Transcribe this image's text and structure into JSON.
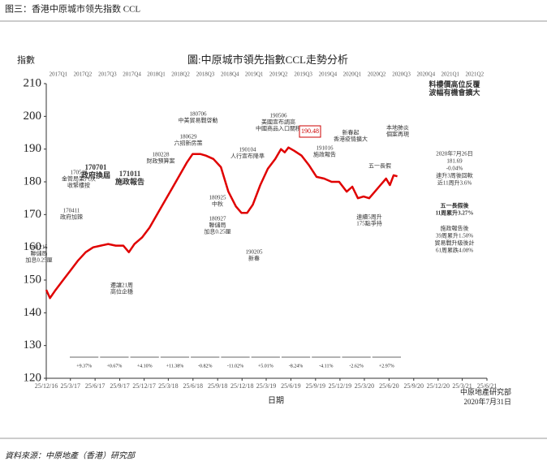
{
  "header": "图三：香港中原城市领先指数 CCL",
  "source_note": "資料來源：中原地產（香港）研究部",
  "chart_data": {
    "type": "line",
    "title": "圖:中原城市領先指數CCL走勢分析",
    "y_label": "指數",
    "x_label": "日期",
    "credit": [
      "中原地產研究部",
      "2020年7月31日"
    ],
    "ylim": [
      120,
      210
    ],
    "yticks": [
      120,
      130,
      140,
      150,
      160,
      170,
      180,
      190,
      200,
      210
    ],
    "xlim": [
      "2016-12-25",
      "2021-06-25"
    ],
    "xticks": [
      {
        "value": "2016-12-25",
        "label": "25/12/16"
      },
      {
        "value": "2017-03-25",
        "label": "25/3/17"
      },
      {
        "value": "2017-06-25",
        "label": "25/6/17"
      },
      {
        "value": "2017-09-25",
        "label": "25/9/17"
      },
      {
        "value": "2017-12-25",
        "label": "25/12/17"
      },
      {
        "value": "2018-03-25",
        "label": "25/3/18"
      },
      {
        "value": "2018-06-25",
        "label": "25/6/18"
      },
      {
        "value": "2018-09-25",
        "label": "25/9/18"
      },
      {
        "value": "2018-12-25",
        "label": "25/12/18"
      },
      {
        "value": "2019-03-25",
        "label": "25/3/19"
      },
      {
        "value": "2019-06-25",
        "label": "25/6/19"
      },
      {
        "value": "2019-09-25",
        "label": "25/9/19"
      },
      {
        "value": "2019-12-25",
        "label": "25/12/19"
      },
      {
        "value": "2020-03-25",
        "label": "25/3/20"
      },
      {
        "value": "2020-06-25",
        "label": "25/6/20"
      },
      {
        "value": "2020-09-25",
        "label": "25/9/20"
      },
      {
        "value": "2020-12-25",
        "label": "25/12/20"
      },
      {
        "value": "2021-03-25",
        "label": "25/3/21"
      },
      {
        "value": "2021-06-25",
        "label": "25/6/21"
      }
    ],
    "quarters": [
      "2017Q1",
      "2017Q2",
      "2017Q3",
      "2017Q4",
      "2018Q1",
      "2018Q2",
      "2018Q3",
      "2018Q4",
      "2019Q1",
      "2019Q2",
      "2019Q3",
      "2019Q4",
      "2020Q1",
      "2020Q2",
      "2020Q3",
      "2020Q4",
      "2021Q1",
      "2021Q2"
    ],
    "grid": false,
    "series": [
      {
        "name": "CCL",
        "color": "#e00000",
        "x": [
          "2016-12-25",
          "2017-01-08",
          "2017-01-29",
          "2017-02-26",
          "2017-03-26",
          "2017-04-23",
          "2017-05-21",
          "2017-06-18",
          "2017-07-16",
          "2017-08-13",
          "2017-09-10",
          "2017-10-08",
          "2017-10-29",
          "2017-11-19",
          "2017-12-17",
          "2018-01-14",
          "2018-02-11",
          "2018-03-11",
          "2018-04-08",
          "2018-05-06",
          "2018-06-03",
          "2018-06-24",
          "2018-07-22",
          "2018-08-12",
          "2018-09-09",
          "2018-10-07",
          "2018-11-04",
          "2018-12-02",
          "2018-12-23",
          "2019-01-13",
          "2019-02-03",
          "2019-03-03",
          "2019-03-31",
          "2019-04-28",
          "2019-05-19",
          "2019-06-02",
          "2019-06-16",
          "2019-07-07",
          "2019-08-04",
          "2019-09-01",
          "2019-09-29",
          "2019-10-27",
          "2019-11-24",
          "2019-12-22",
          "2020-01-19",
          "2020-02-09",
          "2020-03-01",
          "2020-03-22",
          "2020-04-12",
          "2020-05-03",
          "2020-05-24",
          "2020-06-14",
          "2020-06-28",
          "2020-07-12",
          "2020-07-26"
        ],
        "values": [
          147,
          144.5,
          147,
          150,
          153,
          156,
          158.5,
          160,
          160.5,
          161,
          160.5,
          160.5,
          158.5,
          161,
          163,
          166,
          170,
          174,
          178,
          182,
          186,
          188.5,
          188.5,
          188,
          187,
          184.5,
          177,
          172.5,
          170.5,
          170.5,
          173,
          179,
          184,
          187,
          190,
          189,
          190.48,
          189.5,
          188,
          185,
          181.5,
          181,
          180,
          180,
          177,
          178.5,
          175,
          175.5,
          175,
          177,
          179,
          181,
          179,
          182,
          181.69
        ]
      }
    ],
    "annotations": [
      [
        "161215",
        "聯儲局",
        "加息0.25厘"
      ],
      [
        "170411",
        "政府加辣"
      ],
      [
        "170519",
        "金管局第八次",
        "收緊樓按"
      ],
      [
        "170701",
        "政府換屆"
      ],
      [
        "171011",
        "施政報告"
      ],
      [
        "遷讓21周",
        "高位企穩"
      ],
      [
        "180228",
        "財政預算案"
      ],
      [
        "180629",
        "六招新房策"
      ],
      [
        "180706",
        "中美貿易戰啓動"
      ],
      [
        "180925",
        "中秋"
      ],
      [
        "180927",
        "聯儲局",
        "加息0.25厘"
      ],
      [
        "190104",
        "人行宣布降準"
      ],
      [
        "190205",
        "新春"
      ],
      [
        "190506",
        "美國宣布調高",
        "中國商品入口關稅"
      ],
      [
        "190.48"
      ],
      [
        "191016",
        "施政報告"
      ],
      [
        "新春起",
        "香港疫情擴大"
      ],
      [
        "連續5周升",
        "175點爭持"
      ],
      [
        "五一長假"
      ],
      [
        "本地肺炎",
        "個案再現"
      ]
    ],
    "side_notes": [
      [
        "料樓價高位反覆",
        "波幅有機會擴大"
      ],
      [
        "2020年7月26日",
        "181.69",
        "-0.04%",
        "連升3周後回軟",
        "近11周升3.6%"
      ],
      [
        "五一長假後",
        "11周累升3.27%"
      ],
      [
        "施政報告後",
        "39周累升1.50%"
      ],
      [
        "貿易戰升級後計",
        "61周累跌4.08%"
      ]
    ],
    "period_changes": [
      "+9.37%",
      "+0.67%",
      "+4.10%",
      "+11.38%",
      "-0.82%",
      "-11.02%",
      "+5.01%",
      "-8.24%",
      "-4.11%",
      "-2.62%",
      "+2.97%"
    ]
  }
}
